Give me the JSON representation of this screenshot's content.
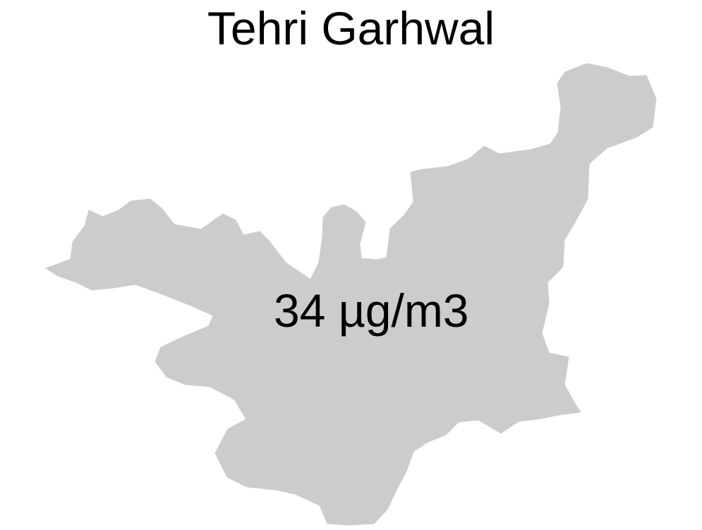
{
  "map": {
    "title": "Tehri Garhwal",
    "value_label": "34 µg/m3",
    "region_fill": "#cccccc",
    "background": "#ffffff"
  }
}
